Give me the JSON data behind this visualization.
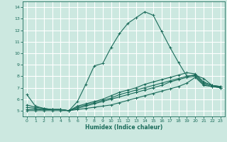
{
  "xlabel": "Humidex (Indice chaleur)",
  "xlim": [
    -0.5,
    23.5
  ],
  "ylim": [
    4.5,
    14.5
  ],
  "xticks": [
    0,
    1,
    2,
    3,
    4,
    5,
    6,
    7,
    8,
    9,
    10,
    11,
    12,
    13,
    14,
    15,
    16,
    17,
    18,
    19,
    20,
    21,
    22,
    23
  ],
  "yticks": [
    5,
    6,
    7,
    8,
    9,
    10,
    11,
    12,
    13,
    14
  ],
  "background_color": "#cce8e0",
  "grid_color": "#ffffff",
  "line_color": "#1a6b5a",
  "lines": [
    {
      "x": [
        0,
        1,
        2,
        3,
        4,
        5,
        6,
        7,
        8,
        9,
        10,
        11,
        12,
        13,
        14,
        15,
        16,
        17,
        18,
        19,
        20,
        21,
        22,
        23
      ],
      "y": [
        6.4,
        5.4,
        5.2,
        5.1,
        5.1,
        5.0,
        5.8,
        7.3,
        8.9,
        9.1,
        10.5,
        11.7,
        12.6,
        13.1,
        13.6,
        13.3,
        11.9,
        10.5,
        9.2,
        8.0,
        8.1,
        7.8,
        7.2,
        7.1
      ]
    },
    {
      "x": [
        0,
        1,
        2,
        3,
        4,
        5,
        6,
        7,
        8,
        9,
        10,
        11,
        12,
        13,
        14,
        15,
        16,
        17,
        18,
        19,
        20,
        21,
        22,
        23
      ],
      "y": [
        5.0,
        5.0,
        5.0,
        5.0,
        5.0,
        5.0,
        5.1,
        5.2,
        5.3,
        5.4,
        5.5,
        5.7,
        5.9,
        6.1,
        6.3,
        6.5,
        6.7,
        6.9,
        7.1,
        7.4,
        7.9,
        7.2,
        7.1,
        7.0
      ]
    },
    {
      "x": [
        0,
        1,
        2,
        3,
        4,
        5,
        6,
        7,
        8,
        9,
        10,
        11,
        12,
        13,
        14,
        15,
        16,
        17,
        18,
        19,
        20,
        21,
        22,
        23
      ],
      "y": [
        5.1,
        5.1,
        5.1,
        5.1,
        5.1,
        5.0,
        5.2,
        5.4,
        5.6,
        5.8,
        6.0,
        6.2,
        6.4,
        6.6,
        6.8,
        7.0,
        7.2,
        7.5,
        7.7,
        7.9,
        8.0,
        7.3,
        7.1,
        7.0
      ]
    },
    {
      "x": [
        0,
        1,
        2,
        3,
        4,
        5,
        6,
        7,
        8,
        9,
        10,
        11,
        12,
        13,
        14,
        15,
        16,
        17,
        18,
        19,
        20,
        21,
        22,
        23
      ],
      "y": [
        5.3,
        5.2,
        5.1,
        5.1,
        5.1,
        5.0,
        5.3,
        5.5,
        5.7,
        5.9,
        6.1,
        6.4,
        6.6,
        6.8,
        7.0,
        7.2,
        7.4,
        7.6,
        7.8,
        8.0,
        8.1,
        7.4,
        7.2,
        7.1
      ]
    },
    {
      "x": [
        0,
        1,
        2,
        3,
        4,
        5,
        6,
        7,
        8,
        9,
        10,
        11,
        12,
        13,
        14,
        15,
        16,
        17,
        18,
        19,
        20,
        21,
        22,
        23
      ],
      "y": [
        5.5,
        5.3,
        5.2,
        5.1,
        5.1,
        5.0,
        5.4,
        5.6,
        5.8,
        6.0,
        6.3,
        6.6,
        6.8,
        7.0,
        7.3,
        7.5,
        7.7,
        7.9,
        8.1,
        8.3,
        8.2,
        7.5,
        7.2,
        7.0
      ]
    }
  ]
}
